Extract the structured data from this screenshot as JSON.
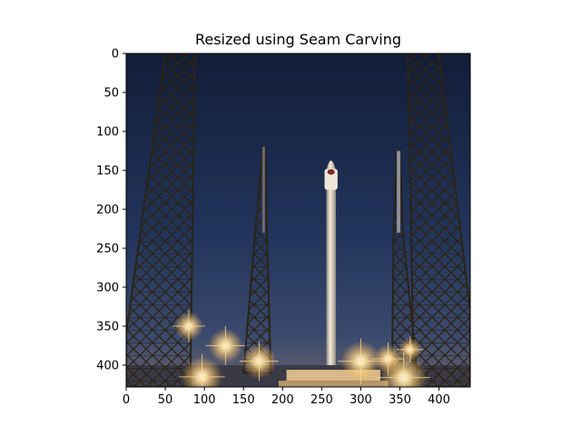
{
  "chart_data": {
    "type": "image",
    "title": "Resized using Seam Carving",
    "xlabel": "",
    "ylabel": "",
    "xlim": [
      0,
      440
    ],
    "ylim": [
      428,
      0
    ],
    "x_ticks": [
      0,
      50,
      100,
      150,
      200,
      250,
      300,
      350,
      400
    ],
    "y_ticks": [
      0,
      50,
      100,
      150,
      200,
      250,
      300,
      350,
      400
    ],
    "image_subject": "rocket on launch pad at dusk between lattice towers",
    "grid": false
  },
  "colors": {
    "sky_top": "#14213f",
    "sky_bottom": "#33456b",
    "horizon": "#5a5f7a",
    "tower": "#2a2418",
    "rocket": "#e9e2d3",
    "light": "#ffd98a"
  }
}
